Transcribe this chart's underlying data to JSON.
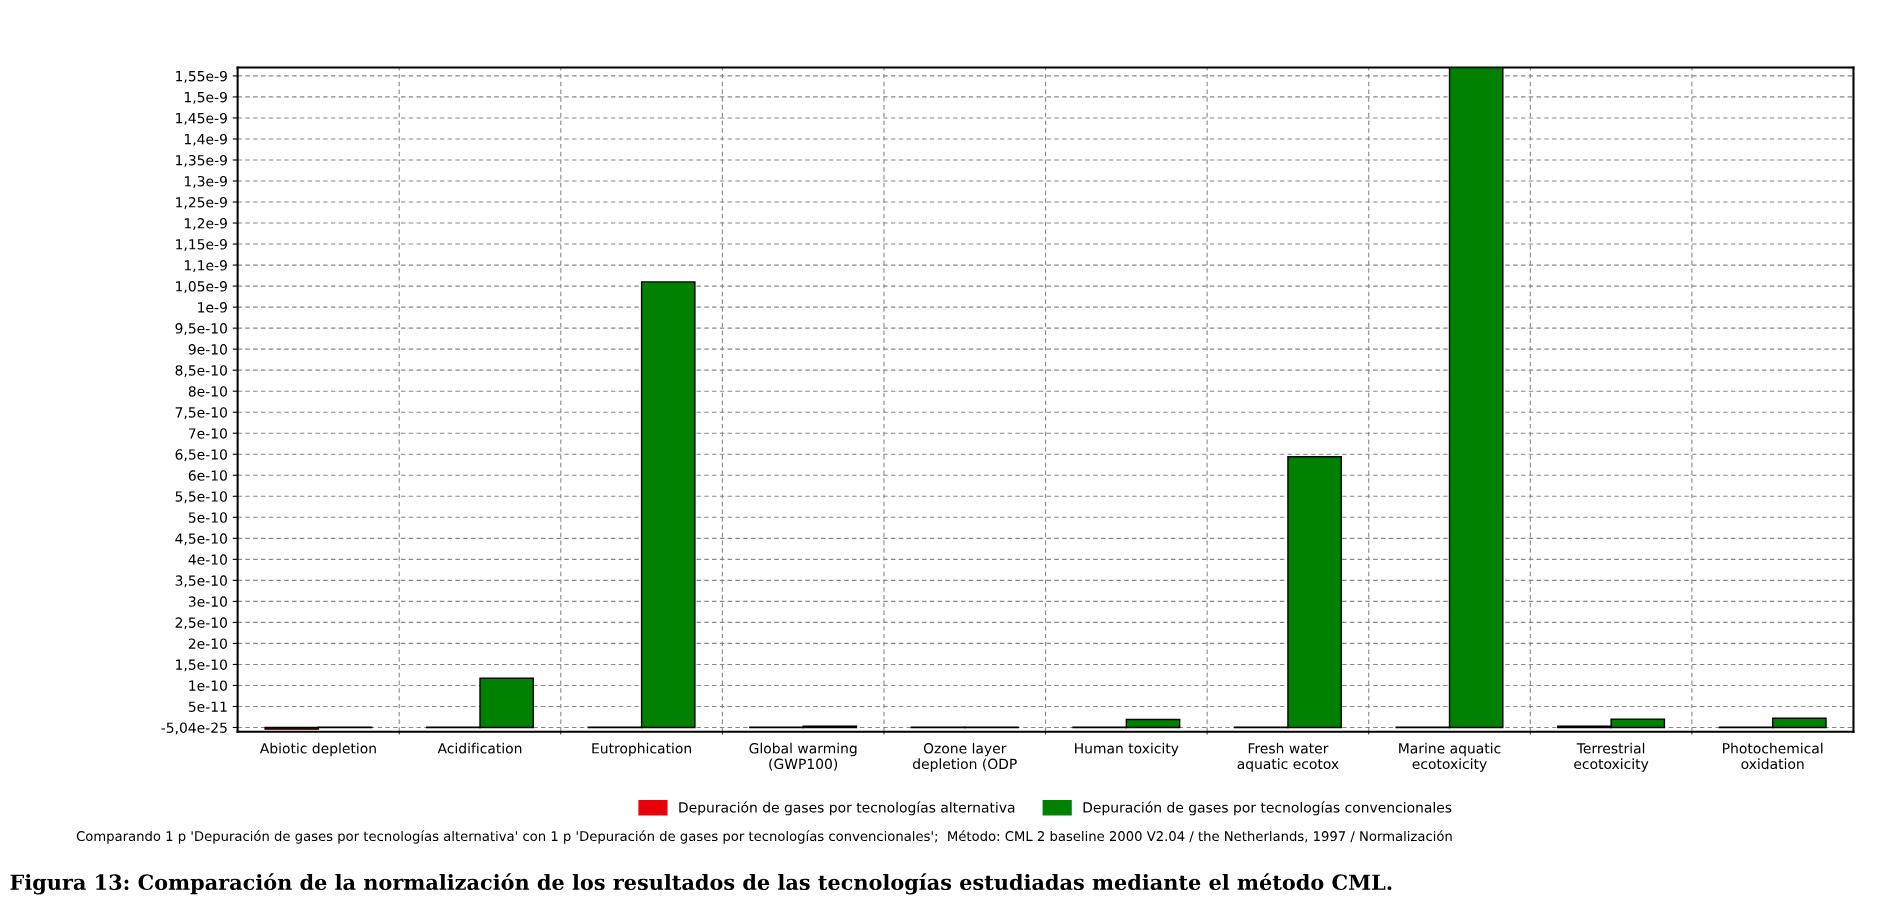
{
  "chart_data": {
    "type": "bar",
    "categories": [
      "Abiotic depletion",
      "Acidification",
      "Eutrophication",
      "Global warming\n(GWP100)",
      "Ozone layer\ndepletion (ODP",
      "Human toxicity",
      "Fresh water\naquatic ecotox",
      "Marine aquatic\necotoxicity",
      "Terrestrial\necotoxicity",
      "Photochemical\noxidation"
    ],
    "series": [
      {
        "name": "Depuración de gases por tecnologías alternativa",
        "color": "#e8000b",
        "values": [
          -4e-12,
          1e-12,
          1e-12,
          1e-12,
          1e-12,
          1e-12,
          1e-12,
          1e-12,
          3e-12,
          1e-12
        ]
      },
      {
        "name": "Depuración de gases por tecnologías convencionales",
        "color": "#008000",
        "values": [
          1e-12,
          1.17e-10,
          1.06e-09,
          3e-12,
          1e-12,
          1.9e-11,
          6.44e-10,
          1.57e-09,
          2e-11,
          2.2e-11
        ]
      }
    ],
    "ylim": [
      -1e-11,
      1.57e-09
    ],
    "yticks": [
      {
        "value": 0,
        "label": "-5,04e-25"
      },
      {
        "value": 5e-11,
        "label": "5e-11"
      },
      {
        "value": 1e-10,
        "label": "1e-10"
      },
      {
        "value": 1.5e-10,
        "label": "1,5e-10"
      },
      {
        "value": 2e-10,
        "label": "2e-10"
      },
      {
        "value": 2.5e-10,
        "label": "2,5e-10"
      },
      {
        "value": 3e-10,
        "label": "3e-10"
      },
      {
        "value": 3.5e-10,
        "label": "3,5e-10"
      },
      {
        "value": 4e-10,
        "label": "4e-10"
      },
      {
        "value": 4.5e-10,
        "label": "4,5e-10"
      },
      {
        "value": 5e-10,
        "label": "5e-10"
      },
      {
        "value": 5.5e-10,
        "label": "5,5e-10"
      },
      {
        "value": 6e-10,
        "label": "6e-10"
      },
      {
        "value": 6.5e-10,
        "label": "6,5e-10"
      },
      {
        "value": 7e-10,
        "label": "7e-10"
      },
      {
        "value": 7.5e-10,
        "label": "7,5e-10"
      },
      {
        "value": 8e-10,
        "label": "8e-10"
      },
      {
        "value": 8.5e-10,
        "label": "8,5e-10"
      },
      {
        "value": 9e-10,
        "label": "9e-10"
      },
      {
        "value": 9.5e-10,
        "label": "9,5e-10"
      },
      {
        "value": 1e-09,
        "label": "1e-9"
      },
      {
        "value": 1.05e-09,
        "label": "1,05e-9"
      },
      {
        "value": 1.1e-09,
        "label": "1,1e-9"
      },
      {
        "value": 1.15e-09,
        "label": "1,15e-9"
      },
      {
        "value": 1.2e-09,
        "label": "1,2e-9"
      },
      {
        "value": 1.25e-09,
        "label": "1,25e-9"
      },
      {
        "value": 1.3e-09,
        "label": "1,3e-9"
      },
      {
        "value": 1.35e-09,
        "label": "1,35e-9"
      },
      {
        "value": 1.4e-09,
        "label": "1,4e-9"
      },
      {
        "value": 1.45e-09,
        "label": "1,45e-9"
      },
      {
        "value": 1.5e-09,
        "label": "1,5e-9"
      },
      {
        "value": 1.55e-09,
        "label": "1,55e-9"
      }
    ],
    "grid": true,
    "legend": "bottom",
    "annotations": [
      "Comparando 1 p 'Depuración de gases por tecnologías alternativa' con 1 p 'Depuración de gases por tecnologías convencionales';  Método: CML 2 baseline 2000 V2.04 / the Netherlands, 1997 / Normalización",
      "Figura 13: Comparación de la normalización de los resultados de las tecnologías estudiadas mediante el método CML."
    ]
  }
}
